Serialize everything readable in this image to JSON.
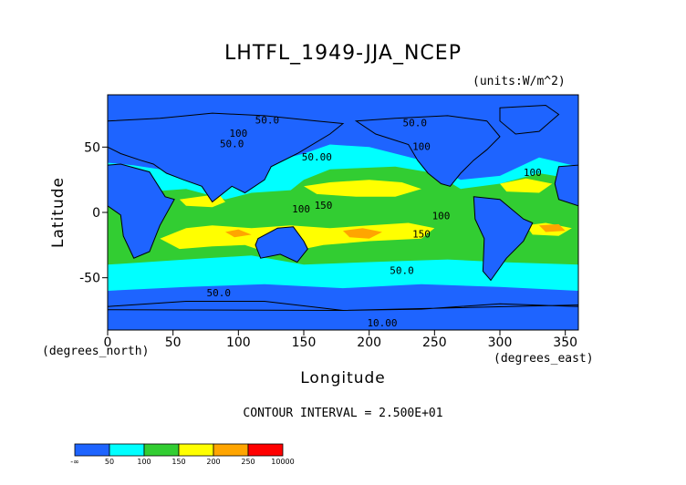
{
  "chart_data": {
    "type": "heatmap",
    "title": "LHTFL_1949-JJA_NCEP",
    "units": "(units:W/m^2)",
    "xlabel": "Longitude",
    "ylabel": "Latitude",
    "x_unit": "(degrees_east)",
    "y_unit": "(degrees_north)",
    "xlim": [
      0,
      360
    ],
    "ylim": [
      -90,
      90
    ],
    "x_ticks": [
      0,
      50,
      100,
      150,
      200,
      250,
      300,
      350
    ],
    "y_ticks": [
      50,
      0,
      -50
    ],
    "contour_interval_text": "CONTOUR INTERVAL = 2.500E+01",
    "colorbar": {
      "colors": [
        "#1e64ff",
        "#00ffff",
        "#32cd32",
        "#ffff00",
        "#ffa500",
        "#ff0000"
      ],
      "tick_labels": [
        "-∞",
        "50",
        "100",
        "150",
        "200",
        "250",
        "10000"
      ]
    },
    "contour_labels": [
      {
        "text": "50.0",
        "x": 122,
        "y": 70
      },
      {
        "text": "100",
        "x": 100,
        "y": 60
      },
      {
        "text": "50.0",
        "x": 95,
        "y": 52
      },
      {
        "text": "50.0",
        "x": 235,
        "y": 68
      },
      {
        "text": "100",
        "x": 240,
        "y": 50
      },
      {
        "text": "50.00",
        "x": 160,
        "y": 42
      },
      {
        "text": "100",
        "x": 325,
        "y": 30
      },
      {
        "text": "150",
        "x": 165,
        "y": 5
      },
      {
        "text": "100",
        "x": 148,
        "y": 2
      },
      {
        "text": "100",
        "x": 255,
        "y": -3
      },
      {
        "text": "150",
        "x": 240,
        "y": -17
      },
      {
        "text": "50.0",
        "x": 225,
        "y": -45
      },
      {
        "text": "50.0",
        "x": 85,
        "y": -62
      },
      {
        "text": "10.00",
        "x": 210,
        "y": -85
      }
    ]
  }
}
